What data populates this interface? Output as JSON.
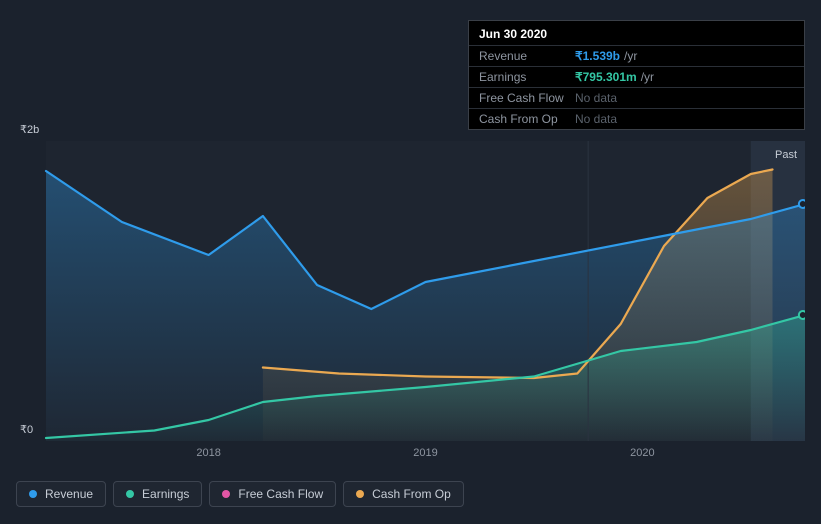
{
  "tooltip": {
    "date": "Jun 30 2020",
    "rows": [
      {
        "label": "Revenue",
        "value": "₹1.539b",
        "unit": "/yr",
        "color": "#2f9ceb",
        "has_data": true
      },
      {
        "label": "Earnings",
        "value": "₹795.301m",
        "unit": "/yr",
        "color": "#34c7a5",
        "has_data": true
      },
      {
        "label": "Free Cash Flow",
        "value": "No data",
        "unit": "",
        "color": "#e256a5",
        "has_data": false
      },
      {
        "label": "Cash From Op",
        "value": "No data",
        "unit": "",
        "color": "#eba951",
        "has_data": false
      }
    ]
  },
  "chart": {
    "type": "area-line",
    "x_range_years": [
      2017.25,
      2020.75
    ],
    "y_range": [
      0,
      2000000000
    ],
    "y_ticks": [
      {
        "value": 0,
        "label": "₹0"
      },
      {
        "value": 2000000000,
        "label": "₹2b"
      }
    ],
    "x_ticks": [
      {
        "year": 2018,
        "label": "2018"
      },
      {
        "year": 2019,
        "label": "2019"
      },
      {
        "year": 2020,
        "label": "2020"
      }
    ],
    "background_color": "#1b222d",
    "plot_area_overlay": "rgba(255,255,255,0.015)",
    "vertical_marker_year": 2019.75,
    "past_label": "Past",
    "highlight_band_start_year": 2020.5,
    "cursor_marker_year": 2020.74,
    "series": {
      "revenue": {
        "label": "Revenue",
        "color": "#2f9ceb",
        "fill": "rgba(47,156,235,0.18)",
        "line_width": 2.2,
        "points": [
          [
            2017.25,
            1800000000
          ],
          [
            2017.6,
            1460000000
          ],
          [
            2018.0,
            1240000000
          ],
          [
            2018.25,
            1500000000
          ],
          [
            2018.5,
            1040000000
          ],
          [
            2018.75,
            880000000
          ],
          [
            2019.0,
            1060000000
          ],
          [
            2019.5,
            1200000000
          ],
          [
            2020.0,
            1340000000
          ],
          [
            2020.5,
            1480000000
          ],
          [
            2020.75,
            1580000000
          ]
        ]
      },
      "earnings": {
        "label": "Earnings",
        "color": "#34c7a5",
        "fill": "rgba(52,199,165,0.14)",
        "line_width": 2.2,
        "points": [
          [
            2017.25,
            20000000
          ],
          [
            2017.75,
            70000000
          ],
          [
            2018.0,
            140000000
          ],
          [
            2018.25,
            260000000
          ],
          [
            2018.5,
            300000000
          ],
          [
            2019.0,
            360000000
          ],
          [
            2019.5,
            430000000
          ],
          [
            2019.9,
            600000000
          ],
          [
            2020.25,
            660000000
          ],
          [
            2020.5,
            740000000
          ],
          [
            2020.75,
            840000000
          ]
        ]
      },
      "cash_from_op": {
        "label": "Cash From Op",
        "color": "#eba951",
        "fill": "rgba(235,169,81,0.18)",
        "line_width": 2.2,
        "points": [
          [
            2018.25,
            490000000
          ],
          [
            2018.6,
            450000000
          ],
          [
            2019.0,
            430000000
          ],
          [
            2019.5,
            420000000
          ],
          [
            2019.7,
            450000000
          ],
          [
            2019.9,
            780000000
          ],
          [
            2020.1,
            1300000000
          ],
          [
            2020.3,
            1620000000
          ],
          [
            2020.5,
            1780000000
          ],
          [
            2020.6,
            1810000000
          ]
        ]
      },
      "free_cash_flow": {
        "label": "Free Cash Flow",
        "color": "#e256a5",
        "fill": "none",
        "line_width": 2,
        "points": []
      }
    }
  },
  "legend": [
    {
      "key": "revenue",
      "label": "Revenue",
      "color": "#2f9ceb"
    },
    {
      "key": "earnings",
      "label": "Earnings",
      "color": "#34c7a5"
    },
    {
      "key": "free_cash_flow",
      "label": "Free Cash Flow",
      "color": "#e256a5"
    },
    {
      "key": "cash_from_op",
      "label": "Cash From Op",
      "color": "#eba951"
    }
  ]
}
